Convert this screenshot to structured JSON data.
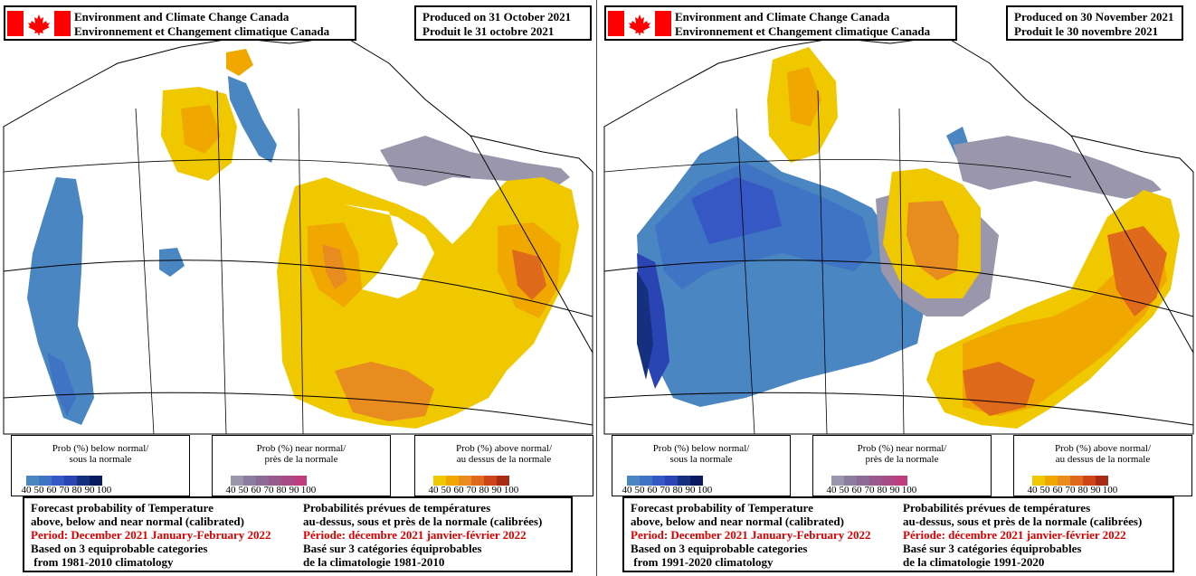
{
  "colors": {
    "below": [
      "#4a86c2",
      "#3f73c4",
      "#3558c4",
      "#2a44b4",
      "#15307e",
      "#0a1a60"
    ],
    "near": [
      "#9a96ac",
      "#8c7ca0",
      "#8c6a96",
      "#985a8c",
      "#a84a86",
      "#c03c7e"
    ],
    "above": [
      "#f0c800",
      "#f0a800",
      "#e88c20",
      "#e06a1c",
      "#cc4418",
      "#a82c14"
    ],
    "flag_red": "#ff0000",
    "period_red": "#d90000"
  },
  "legend_ticks": [
    "40",
    "50",
    "60",
    "70",
    "80",
    "90",
    "100"
  ],
  "left_panel": {
    "agency_en": "Environment and Climate Change Canada",
    "agency_fr": "Environnement et Changement climatique Canada",
    "produced_en": "Produced on 31 October 2021",
    "produced_fr": "Produit le 31 octobre 2021",
    "legend_below": {
      "line1": "Prob (%) below normal/",
      "line2": "sous la normale"
    },
    "legend_near": {
      "line1": "Prob (%) near normal/",
      "line2": "près de la normale"
    },
    "legend_above": {
      "line1": "Prob (%) above normal/",
      "line2": "au dessus de la normale"
    },
    "text_en": {
      "line1": "Forecast probability of Temperature",
      "line2": "above, below and near normal (calibrated)",
      "period": "Period: December 2021 January-February 2022",
      "line4": "Based on 3 equiprobable categories",
      "line5": " from 1981-2010 climatology"
    },
    "text_fr": {
      "line1": "Probabilités prévues de températures",
      "line2": "au-dessus, sous et près de la normale (calibrées)",
      "period": "Période: décembre 2021 janvier-février 2022",
      "line4": "Basé sur 3 catégories équiprobables",
      "line5": "de la climatologie 1981-2010"
    }
  },
  "right_panel": {
    "agency_en": "Environment and Climate Change Canada",
    "agency_fr": "Environnement et Changement climatique Canada",
    "produced_en": "Produced on 30 November 2021",
    "produced_fr": "Produit le 30 novembre 2021",
    "legend_below": {
      "line1": "Prob (%) below normal/",
      "line2": "sous la normale"
    },
    "legend_near": {
      "line1": "Prob (%) near normal/",
      "line2": "près de la normale"
    },
    "legend_above": {
      "line1": "Prob (%) above normal/",
      "line2": "au dessus de la normale"
    },
    "text_en": {
      "line1": "Forecast probability of Temperature",
      "line2": "above, below and near normal (calibrated)",
      "period": "Period: December 2021 January-February 2022",
      "line4": "Based on 3 equiprobable categories",
      "line5": " from 1991-2020 climatology"
    },
    "text_fr": {
      "line1": "Probabilités prévues de températures",
      "line2": "au-dessus, sous et près de la normale (calibrées)",
      "period": "Période: décembre 2021 janvier-février 2022",
      "line4": "Basé sur 3 catégories équiprobables",
      "line5": "de la climatologie 1991-2020"
    }
  }
}
